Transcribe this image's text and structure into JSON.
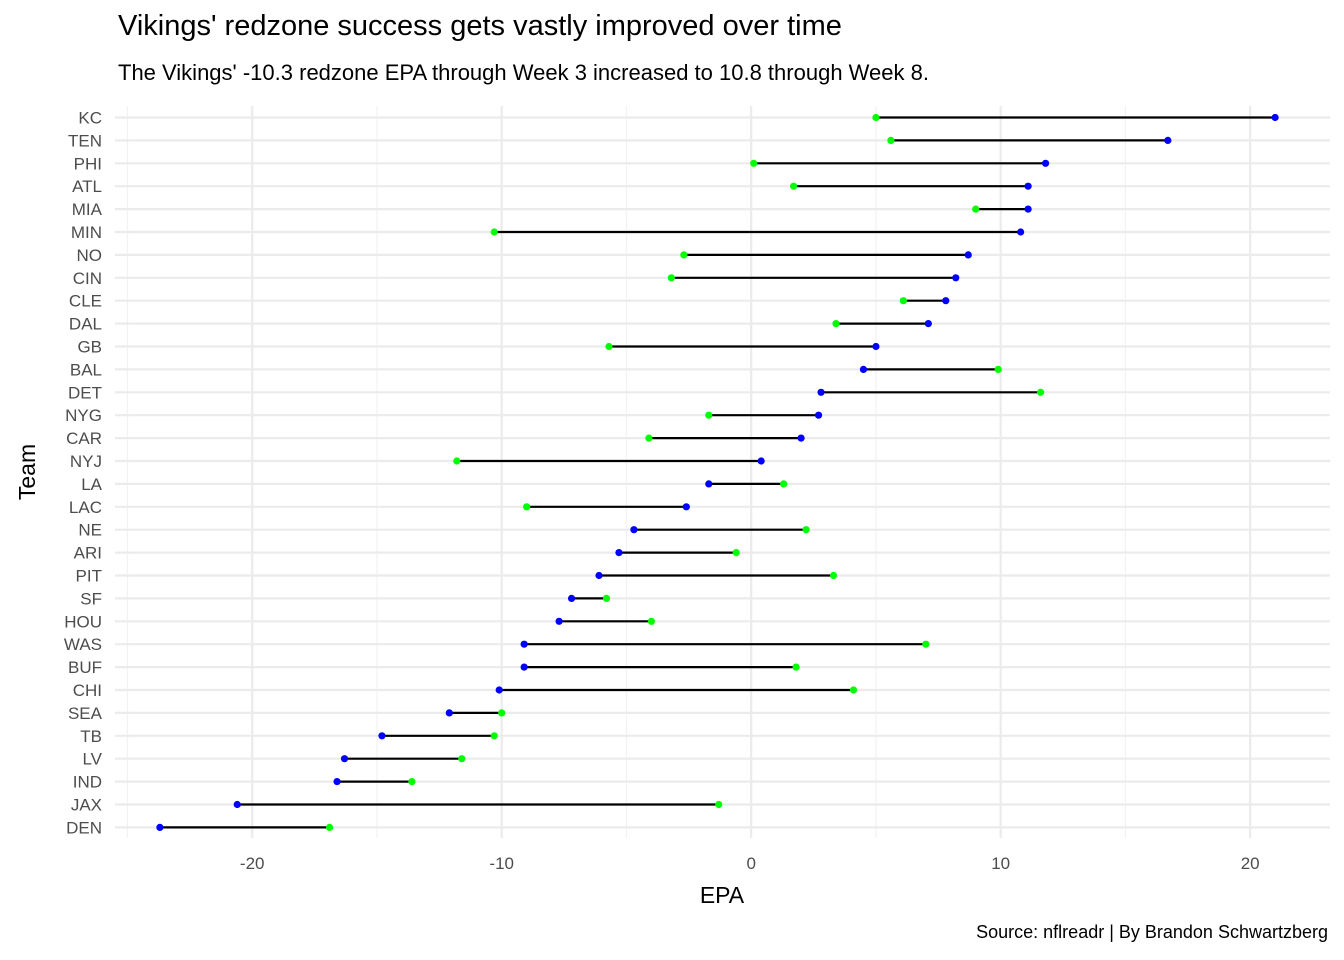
{
  "chart_data": {
    "type": "dumbbell",
    "title": "Vikings' redzone success gets vastly improved over time",
    "subtitle": "The Vikings' -10.3 redzone EPA through Week 3 increased to 10.8 through Week 8.",
    "caption": "Source: nflreadr | By Brandon Schwartzberg",
    "xlabel": "EPA",
    "ylabel": "Team",
    "xlim": [
      -25.5,
      23.2
    ],
    "x_ticks": [
      -20,
      -10,
      0,
      10,
      20
    ],
    "x_tick_labels": [
      "-20",
      "-10",
      "0",
      "10",
      "20"
    ],
    "grid": true,
    "series": [
      {
        "color": "#00ff00"
      },
      {
        "color": "#0000ff"
      }
    ],
    "categories": [
      "KC",
      "TEN",
      "PHI",
      "ATL",
      "MIA",
      "MIN",
      "NO",
      "CIN",
      "CLE",
      "DAL",
      "GB",
      "BAL",
      "DET",
      "NYG",
      "CAR",
      "NYJ",
      "LA",
      "LAC",
      "NE",
      "ARI",
      "PIT",
      "SF",
      "HOU",
      "WAS",
      "BUF",
      "CHI",
      "SEA",
      "TB",
      "LV",
      "IND",
      "JAX",
      "DEN"
    ],
    "green_values": [
      5.0,
      5.6,
      0.1,
      1.7,
      9.0,
      -10.3,
      -2.7,
      -3.2,
      6.1,
      3.4,
      -5.7,
      9.9,
      11.6,
      -1.7,
      -4.1,
      -11.8,
      1.3,
      -9.0,
      2.2,
      -0.6,
      3.3,
      -5.8,
      -4.0,
      7.0,
      1.8,
      4.1,
      -10.0,
      -10.3,
      -11.6,
      -13.6,
      -1.3,
      -16.9
    ],
    "blue_values": [
      21.0,
      16.7,
      11.8,
      11.1,
      11.1,
      10.8,
      8.7,
      8.2,
      7.8,
      7.1,
      5.0,
      4.5,
      2.8,
      2.7,
      2.0,
      0.4,
      -1.7,
      -2.6,
      -4.7,
      -5.3,
      -6.1,
      -7.2,
      -7.7,
      -9.1,
      -9.1,
      -10.1,
      -12.1,
      -14.8,
      -16.3,
      -16.6,
      -20.6,
      -23.7
    ]
  }
}
